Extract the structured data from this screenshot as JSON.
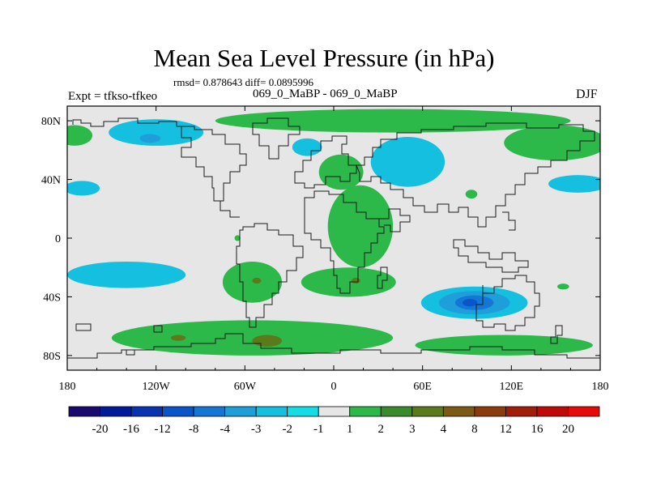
{
  "chart_data": {
    "type": "map-contour",
    "title": "Mean Sea Level Pressure (in hPa)",
    "stats": "rmsd= 0.878643 diff= 0.0895996",
    "left_label": "Expt = tfkso-tfkeo",
    "center_label": "069_0_MaBP - 069_0_MaBP",
    "right_label": "DJF",
    "x_ticks": [
      "180",
      "120W",
      "60W",
      "0",
      "60E",
      "120E",
      "180"
    ],
    "x_tick_lons": [
      -180,
      -120,
      -60,
      0,
      60,
      120,
      180
    ],
    "y_ticks": [
      "80N",
      "40N",
      "0",
      "40S",
      "80S"
    ],
    "y_tick_lats": [
      80,
      40,
      0,
      -40,
      -80
    ],
    "lon_range": [
      -180,
      180
    ],
    "lat_range": [
      -90,
      90
    ],
    "colorbar_labels": [
      "-20",
      "-16",
      "-12",
      "-8",
      "-4",
      "-3",
      "-2",
      "-1",
      "1",
      "2",
      "3",
      "4",
      "8",
      "12",
      "16",
      "20"
    ],
    "colorbar_colors": [
      "#1a0a6e",
      "#001a9a",
      "#0a33b0",
      "#0a55c8",
      "#1477d6",
      "#1f9fd9",
      "#14bfe0",
      "#14dde6",
      "#e6e6e6",
      "#2db84a",
      "#3a8a2e",
      "#5a7a1c",
      "#7a5a14",
      "#8a3c0c",
      "#a01e0a",
      "#c00a0a",
      "#e60a0a"
    ],
    "regions": [
      {
        "name": "north-pacific-low",
        "level": "-2",
        "center": [
          -120,
          72
        ],
        "radius": [
          32,
          9
        ]
      },
      {
        "name": "arctic-deep-low",
        "level": "-3",
        "center": [
          -124,
          68
        ],
        "radius": [
          7,
          3
        ]
      },
      {
        "name": "north-atlantic-low",
        "level": "-2",
        "center": [
          -18,
          62
        ],
        "radius": [
          10,
          6
        ]
      },
      {
        "name": "siberia-low",
        "level": "-2",
        "center": [
          50,
          52
        ],
        "radius": [
          25,
          17
        ]
      },
      {
        "name": "north-pacific-west-low",
        "level": "-2",
        "center": [
          -170,
          34
        ],
        "radius": [
          12,
          5
        ]
      },
      {
        "name": "east-asia-low",
        "level": "-2",
        "center": [
          165,
          37
        ],
        "radius": [
          20,
          6
        ]
      },
      {
        "name": "south-pacific-low",
        "level": "-2",
        "center": [
          -140,
          -25
        ],
        "radius": [
          40,
          9
        ]
      },
      {
        "name": "south-indian-low-outer",
        "level": "-2",
        "center": [
          95,
          -44
        ],
        "radius": [
          36,
          11
        ]
      },
      {
        "name": "south-indian-low-mid",
        "level": "-3",
        "center": [
          95,
          -44
        ],
        "radius": [
          24,
          8
        ]
      },
      {
        "name": "south-indian-low-inner",
        "level": "-4",
        "center": [
          95,
          -44
        ],
        "radius": [
          13,
          5
        ]
      },
      {
        "name": "south-indian-low-core",
        "level": "-8",
        "center": [
          92,
          -44
        ],
        "radius": [
          5,
          2.5
        ]
      },
      {
        "name": "southern-ocean-high",
        "level": "1",
        "center": [
          -55,
          -68
        ],
        "radius": [
          95,
          12
        ]
      },
      {
        "name": "southern-ocean-high-east",
        "level": "1",
        "center": [
          115,
          -73
        ],
        "radius": [
          60,
          7
        ]
      },
      {
        "name": "africa-high",
        "level": "1",
        "center": [
          18,
          8
        ],
        "radius": [
          22,
          28
        ]
      },
      {
        "name": "south-america-high",
        "level": "1",
        "center": [
          -55,
          -30
        ],
        "radius": [
          20,
          14
        ]
      },
      {
        "name": "south-atlantic-high",
        "level": "1",
        "center": [
          10,
          -30
        ],
        "radius": [
          32,
          10
        ]
      },
      {
        "name": "europe-high",
        "level": "1",
        "center": [
          5,
          45
        ],
        "radius": [
          15,
          12
        ]
      },
      {
        "name": "arctic-high",
        "level": "1",
        "center": [
          40,
          80
        ],
        "radius": [
          120,
          8
        ]
      },
      {
        "name": "far-east-high",
        "level": "1",
        "center": [
          150,
          65
        ],
        "radius": [
          35,
          12
        ]
      },
      {
        "name": "alaska-high",
        "level": "1",
        "center": [
          -175,
          70
        ],
        "radius": [
          12,
          7
        ]
      },
      {
        "name": "atlantic-small-high",
        "level": "1",
        "center": [
          -65,
          0
        ],
        "radius": [
          2,
          2
        ]
      },
      {
        "name": "india-small-high",
        "level": "1",
        "center": [
          93,
          30
        ],
        "radius": [
          4,
          3
        ]
      },
      {
        "name": "indonesia-small-high",
        "level": "1",
        "center": [
          155,
          -33
        ],
        "radius": [
          4,
          2
        ]
      },
      {
        "name": "southern-ocean-core-1",
        "level": "3",
        "center": [
          -45,
          -70
        ],
        "radius": [
          10,
          4
        ]
      },
      {
        "name": "southern-ocean-core-2",
        "level": "3",
        "center": [
          -105,
          -68
        ],
        "radius": [
          5,
          2
        ]
      },
      {
        "name": "south-america-core",
        "level": "3",
        "center": [
          -52,
          -29
        ],
        "radius": [
          3,
          2
        ]
      },
      {
        "name": "south-atlantic-core",
        "level": "3",
        "center": [
          15,
          -29
        ],
        "radius": [
          3,
          2
        ]
      }
    ]
  }
}
